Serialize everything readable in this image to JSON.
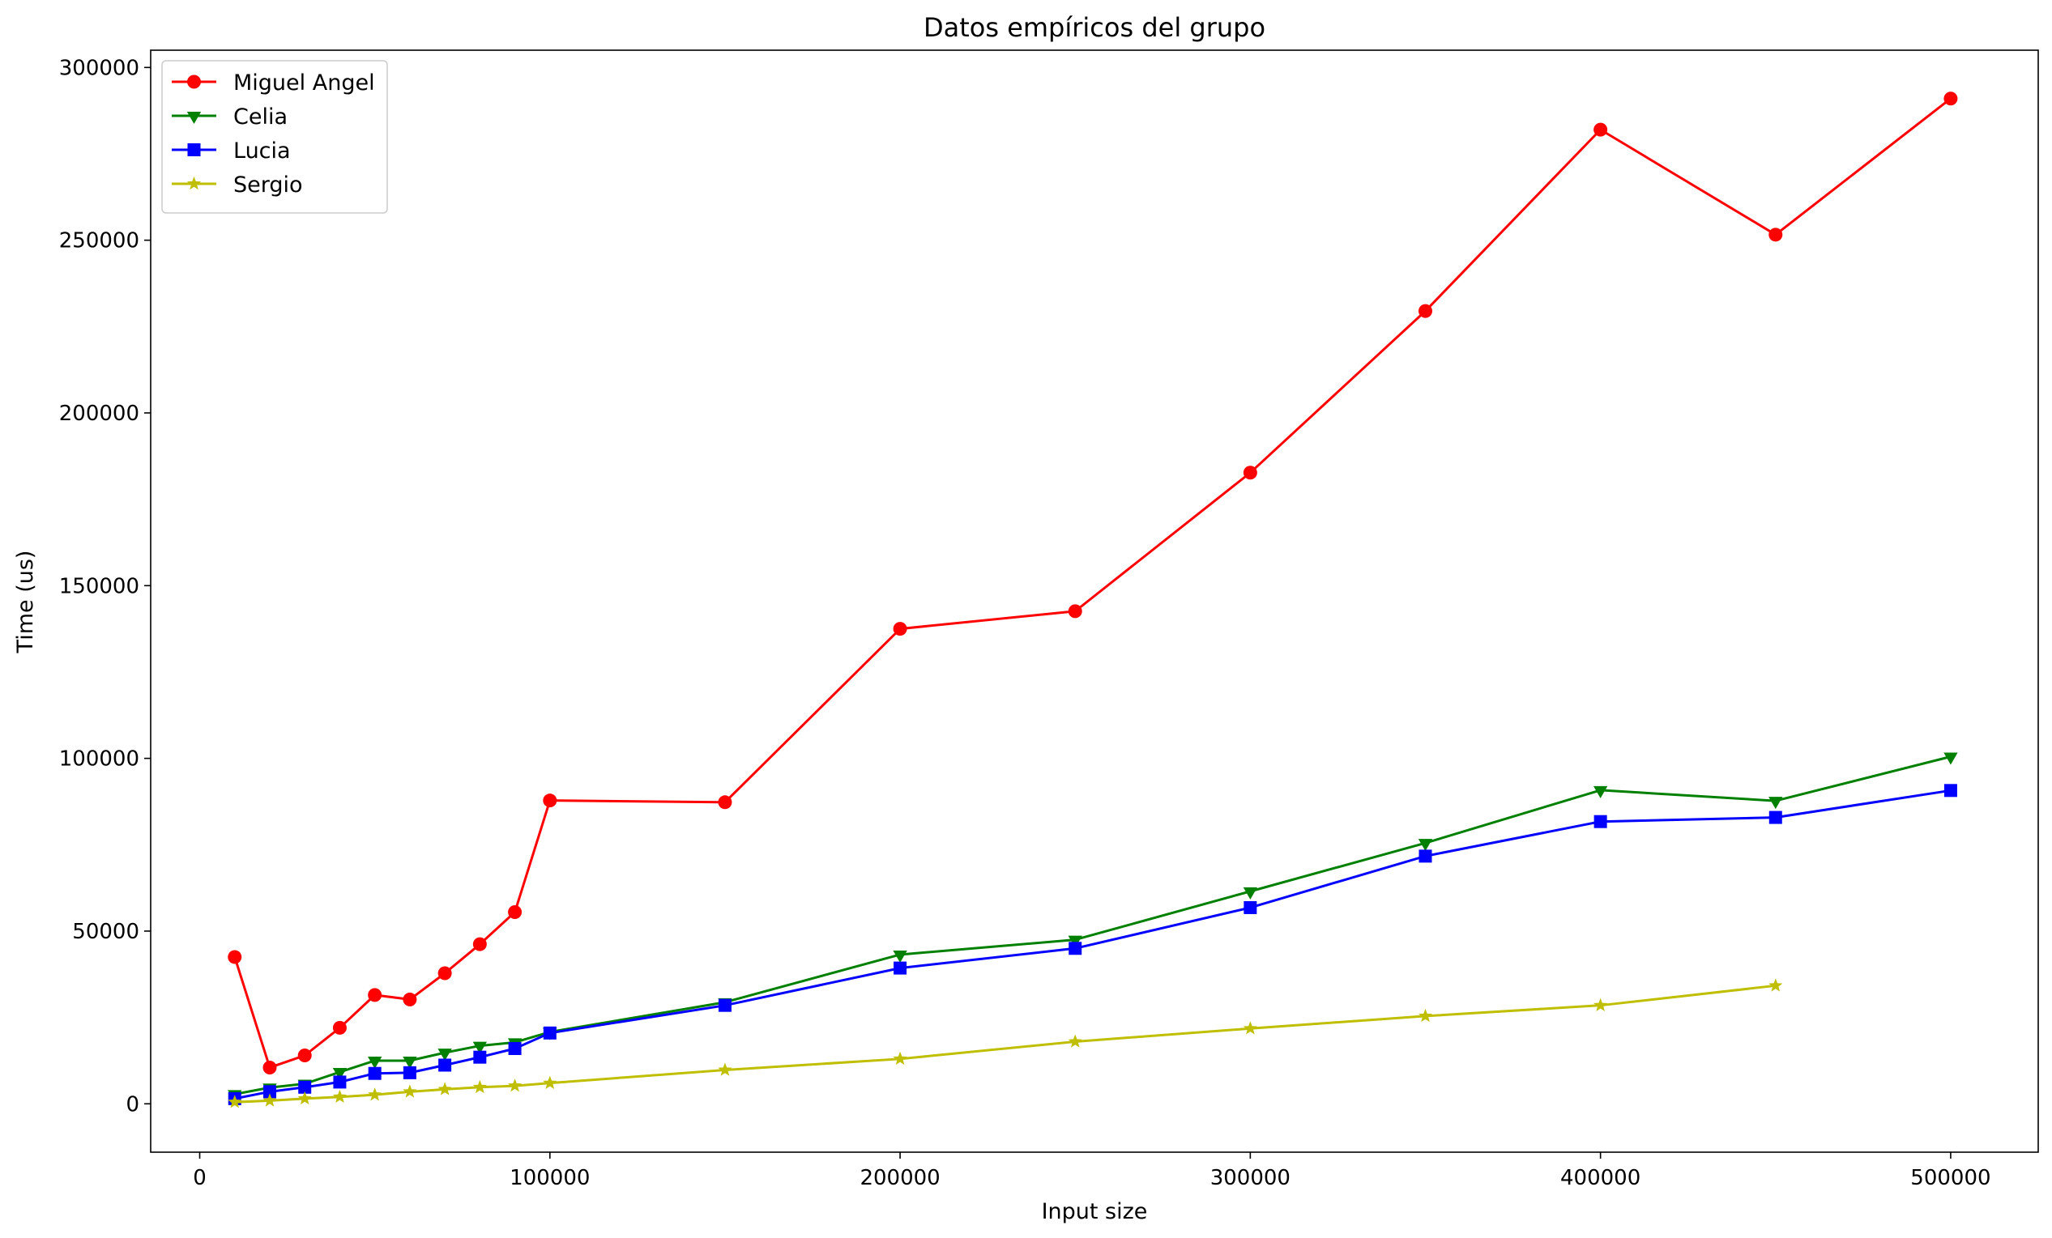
{
  "chart_data": {
    "type": "line",
    "title": "Datos empíricos del grupo",
    "xlabel": "Input size",
    "ylabel": "Time (us)",
    "xlim": [
      -14000,
      525000
    ],
    "ylim": [
      -14000,
      305000
    ],
    "xticks": [
      0,
      100000,
      200000,
      300000,
      400000,
      500000
    ],
    "xtick_labels": [
      "0",
      "100000",
      "200000",
      "300000",
      "400000",
      "500000"
    ],
    "yticks": [
      0,
      50000,
      100000,
      150000,
      200000,
      250000,
      300000
    ],
    "ytick_labels": [
      "0",
      "50000",
      "100000",
      "150000",
      "200000",
      "250000",
      "300000"
    ],
    "grid": false,
    "legend_position": "upper-left",
    "series": [
      {
        "name": "Miguel Angel",
        "color": "#ff0000",
        "marker": "circle",
        "x": [
          10000,
          20000,
          30000,
          40000,
          50000,
          60000,
          70000,
          80000,
          90000,
          100000,
          150000,
          200000,
          250000,
          300000,
          350000,
          400000,
          450000,
          500000
        ],
        "y": [
          42500,
          10500,
          14000,
          22000,
          31500,
          30200,
          37800,
          46200,
          55500,
          87800,
          87300,
          137500,
          142600,
          182700,
          229500,
          282000,
          251600,
          291000
        ]
      },
      {
        "name": "Celia",
        "color": "#008000",
        "marker": "triangle-down",
        "x": [
          10000,
          20000,
          30000,
          40000,
          50000,
          60000,
          70000,
          80000,
          90000,
          100000,
          150000,
          200000,
          250000,
          300000,
          350000,
          400000,
          450000,
          500000
        ],
        "y": [
          2800,
          4700,
          5800,
          9200,
          12500,
          12500,
          14800,
          16800,
          17800,
          20800,
          29400,
          43200,
          47500,
          61500,
          75500,
          90800,
          87700,
          100500
        ]
      },
      {
        "name": "Lucia",
        "color": "#0000ff",
        "marker": "square",
        "x": [
          10000,
          20000,
          30000,
          40000,
          50000,
          60000,
          70000,
          80000,
          90000,
          100000,
          150000,
          200000,
          250000,
          300000,
          350000,
          400000,
          450000,
          500000
        ],
        "y": [
          1500,
          3500,
          4800,
          6300,
          8800,
          9000,
          11200,
          13500,
          16000,
          20500,
          28500,
          39300,
          45000,
          56800,
          71700,
          81700,
          82900,
          90700
        ]
      },
      {
        "name": "Sergio",
        "color": "#bfbf00",
        "marker": "star",
        "x": [
          10000,
          20000,
          30000,
          40000,
          50000,
          60000,
          70000,
          80000,
          90000,
          100000,
          150000,
          200000,
          250000,
          300000,
          350000,
          400000,
          450000
        ],
        "y": [
          500,
          900,
          1500,
          2000,
          2600,
          3500,
          4200,
          4800,
          5200,
          6000,
          9800,
          13000,
          18000,
          21800,
          25400,
          28500,
          34200
        ]
      }
    ]
  }
}
